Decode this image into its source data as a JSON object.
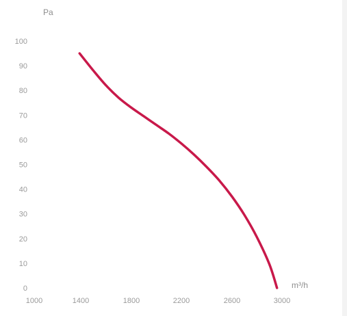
{
  "chart_data": {
    "type": "line",
    "title": "",
    "xlabel": "m³/h",
    "ylabel": "Pa",
    "xlim": [
      1000,
      3000
    ],
    "ylim": [
      0,
      100
    ],
    "x_ticks": [
      1000,
      1400,
      1800,
      2200,
      2600,
      3000
    ],
    "y_ticks": [
      0,
      10,
      20,
      30,
      40,
      50,
      60,
      70,
      80,
      90,
      100
    ],
    "grid": false,
    "series": [
      {
        "color": "#c8194a",
        "x": [
          1390,
          1500,
          1600,
          1700,
          1800,
          1900,
          2000,
          2100,
          2200,
          2300,
          2400,
          2500,
          2600,
          2700,
          2800,
          2900,
          2960
        ],
        "y": [
          95,
          88,
          82,
          77,
          73,
          69.5,
          66,
          62.5,
          58.5,
          54,
          49,
          43.5,
          37,
          29.5,
          20.5,
          9.5,
          0
        ]
      }
    ]
  }
}
